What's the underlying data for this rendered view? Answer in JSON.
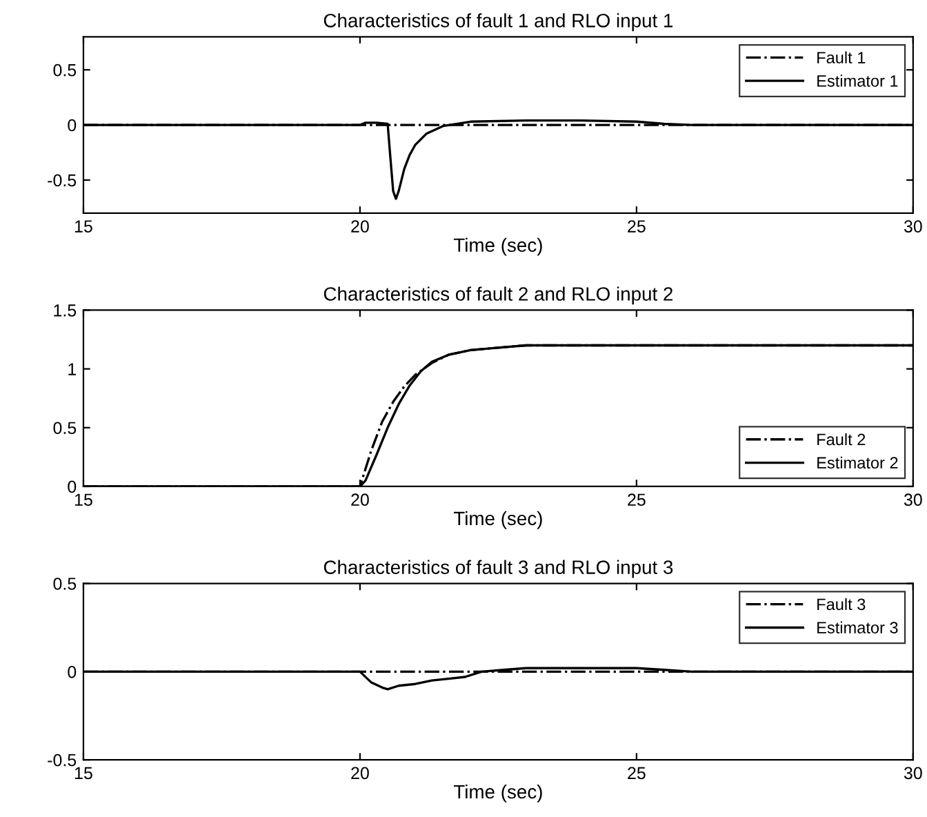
{
  "chart_data": [
    {
      "type": "line",
      "title": "Characteristics of fault 1 and RLO input 1",
      "xlabel": "Time (sec)",
      "xlim": [
        15,
        30
      ],
      "xticks": [
        15,
        20,
        25,
        30
      ],
      "ylim": [
        -0.8,
        0.8
      ],
      "yticks": [
        -0.5,
        0,
        0.5
      ],
      "legend": "top right",
      "grid": false,
      "series": [
        {
          "name": "Fault 1",
          "color": "#000000",
          "line_style": "dashdot",
          "x": [
            15,
            30
          ],
          "values": [
            0,
            0
          ]
        },
        {
          "name": "Estimator 1",
          "color": "#000000",
          "line_style": "solid",
          "x": [
            15,
            20,
            20.1,
            20.3,
            20.5,
            20.55,
            20.6,
            20.65,
            20.7,
            20.8,
            20.9,
            21.0,
            21.2,
            21.5,
            22,
            23,
            24,
            25,
            25.5,
            26,
            30
          ],
          "values": [
            0,
            0,
            0.02,
            0.02,
            0.01,
            -0.3,
            -0.6,
            -0.67,
            -0.6,
            -0.4,
            -0.27,
            -0.18,
            -0.08,
            -0.01,
            0.03,
            0.04,
            0.04,
            0.03,
            0.01,
            0,
            0
          ]
        }
      ]
    },
    {
      "type": "line",
      "title": "Characteristics of fault 2 and RLO input 2",
      "xlabel": "Time (sec)",
      "xlim": [
        15,
        30
      ],
      "xticks": [
        15,
        20,
        25,
        30
      ],
      "ylim": [
        0,
        1.5
      ],
      "yticks": [
        0,
        0.5,
        1,
        1.5
      ],
      "legend": "bottom right",
      "grid": false,
      "series": [
        {
          "name": "Fault 2",
          "color": "#000000",
          "line_style": "dashdot",
          "x": [
            15,
            20,
            20.2,
            20.4,
            20.6,
            20.8,
            21.0,
            21.3,
            21.6,
            22,
            22.5,
            23,
            25,
            30
          ],
          "values": [
            0,
            0,
            0.3,
            0.55,
            0.72,
            0.85,
            0.95,
            1.05,
            1.12,
            1.16,
            1.18,
            1.2,
            1.2,
            1.2
          ]
        },
        {
          "name": "Estimator 2",
          "color": "#000000",
          "line_style": "solid",
          "x": [
            15,
            20,
            20.1,
            20.3,
            20.5,
            20.7,
            20.9,
            21.1,
            21.3,
            21.6,
            22,
            22.5,
            23,
            25,
            30
          ],
          "values": [
            0,
            0,
            0.05,
            0.27,
            0.5,
            0.7,
            0.86,
            0.98,
            1.06,
            1.12,
            1.16,
            1.18,
            1.2,
            1.2,
            1.2
          ]
        }
      ]
    },
    {
      "type": "line",
      "title": "Characteristics of fault 3 and RLO input 3",
      "xlabel": "Time (sec)",
      "xlim": [
        15,
        30
      ],
      "xticks": [
        15,
        20,
        25,
        30
      ],
      "ylim": [
        -0.5,
        0.5
      ],
      "yticks": [
        -0.5,
        0,
        0.5
      ],
      "legend": "top right",
      "grid": false,
      "series": [
        {
          "name": "Fault 3",
          "color": "#000000",
          "line_style": "dashdot",
          "x": [
            15,
            30
          ],
          "values": [
            0,
            0
          ]
        },
        {
          "name": "Estimator 3",
          "color": "#000000",
          "line_style": "solid",
          "x": [
            15,
            20,
            20.2,
            20.4,
            20.5,
            20.7,
            21,
            21.3,
            21.6,
            21.9,
            22.2,
            22.6,
            23,
            24,
            25,
            25.5,
            26,
            30
          ],
          "values": [
            0,
            0,
            -0.06,
            -0.09,
            -0.1,
            -0.08,
            -0.07,
            -0.05,
            -0.04,
            -0.03,
            0,
            0.01,
            0.02,
            0.02,
            0.02,
            0.01,
            0,
            0
          ]
        }
      ]
    }
  ]
}
